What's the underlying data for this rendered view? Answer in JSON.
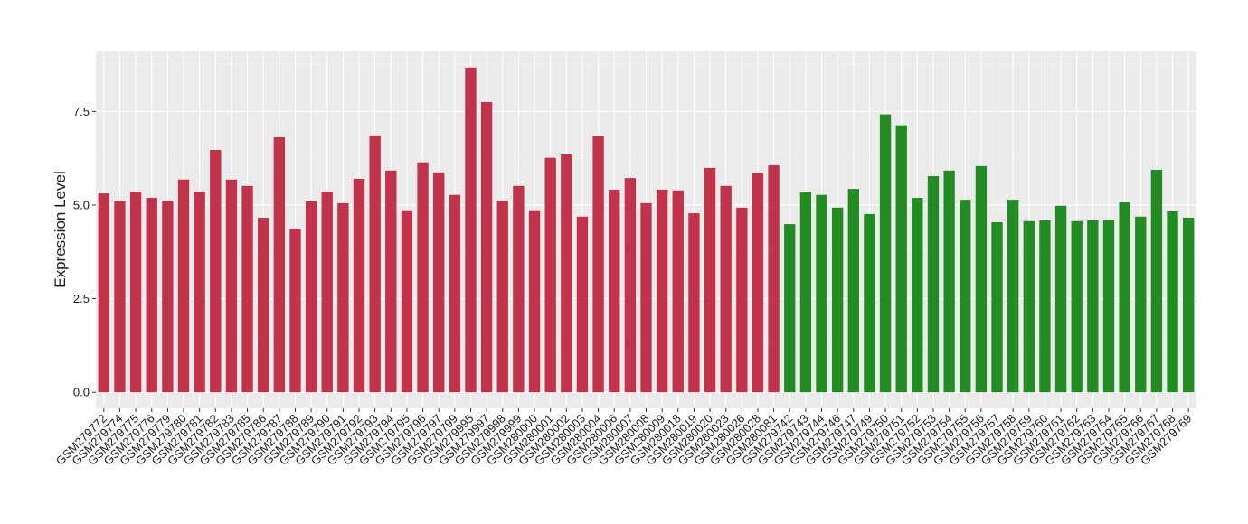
{
  "chart_data": {
    "type": "bar",
    "y_label": "Expression Level",
    "categories": [
      "GSM279772",
      "GSM279774",
      "GSM279775",
      "GSM279776",
      "GSM279779",
      "GSM279780",
      "GSM279781",
      "GSM279782",
      "GSM279783",
      "GSM279785",
      "GSM279786",
      "GSM279787",
      "GSM279788",
      "GSM279789",
      "GSM279790",
      "GSM279791",
      "GSM279792",
      "GSM279793",
      "GSM279794",
      "GSM279795",
      "GSM279796",
      "GSM279797",
      "GSM279799",
      "GSM279995",
      "GSM279997",
      "GSM279998",
      "GSM279999",
      "GSM280000",
      "GSM280001",
      "GSM280002",
      "GSM280003",
      "GSM280004",
      "GSM280006",
      "GSM280007",
      "GSM280008",
      "GSM280009",
      "GSM280018",
      "GSM280019",
      "GSM280020",
      "GSM280023",
      "GSM280026",
      "GSM280028",
      "GSM280081",
      "GSM279742",
      "GSM279743",
      "GSM279744",
      "GSM279746",
      "GSM279747",
      "GSM279749",
      "GSM279750",
      "GSM279751",
      "GSM279752",
      "GSM279753",
      "GSM279754",
      "GSM279755",
      "GSM279756",
      "GSM279757",
      "GSM279758",
      "GSM279759",
      "GSM279760",
      "GSM279761",
      "GSM279762",
      "GSM279763",
      "GSM279764",
      "GSM279765",
      "GSM279766",
      "GSM279767",
      "GSM279768",
      "GSM279769"
    ],
    "values": [
      5.31,
      5.1,
      5.36,
      5.19,
      5.12,
      5.68,
      5.36,
      6.47,
      5.68,
      5.51,
      4.66,
      6.81,
      4.37,
      5.1,
      5.36,
      5.05,
      5.7,
      6.86,
      5.92,
      4.86,
      6.14,
      5.87,
      5.27,
      8.67,
      7.75,
      5.12,
      5.51,
      4.86,
      6.26,
      6.35,
      4.69,
      6.84,
      5.41,
      5.72,
      5.05,
      5.41,
      5.39,
      4.78,
      5.99,
      5.51,
      4.93,
      5.85,
      6.06,
      4.49,
      5.36,
      5.27,
      4.93,
      5.43,
      4.76,
      7.42,
      7.13,
      5.19,
      5.77,
      5.92,
      5.14,
      6.04,
      4.54,
      5.14,
      4.57,
      4.59,
      4.98,
      4.57,
      4.59,
      4.61,
      5.07,
      4.69,
      5.94,
      4.83,
      4.66
    ],
    "colors": [
      "#c0334a",
      "#c0334a",
      "#c0334a",
      "#c0334a",
      "#c0334a",
      "#c0334a",
      "#c0334a",
      "#c0334a",
      "#c0334a",
      "#c0334a",
      "#c0334a",
      "#c0334a",
      "#c0334a",
      "#c0334a",
      "#c0334a",
      "#c0334a",
      "#c0334a",
      "#c0334a",
      "#c0334a",
      "#c0334a",
      "#c0334a",
      "#c0334a",
      "#c0334a",
      "#c0334a",
      "#c0334a",
      "#c0334a",
      "#c0334a",
      "#c0334a",
      "#c0334a",
      "#c0334a",
      "#c0334a",
      "#c0334a",
      "#c0334a",
      "#c0334a",
      "#c0334a",
      "#c0334a",
      "#c0334a",
      "#c0334a",
      "#c0334a",
      "#c0334a",
      "#c0334a",
      "#c0334a",
      "#c0334a",
      "#228b22",
      "#228b22",
      "#228b22",
      "#228b22",
      "#228b22",
      "#228b22",
      "#228b22",
      "#228b22",
      "#228b22",
      "#228b22",
      "#228b22",
      "#228b22",
      "#228b22",
      "#228b22",
      "#228b22",
      "#228b22",
      "#228b22",
      "#228b22",
      "#228b22",
      "#228b22",
      "#228b22",
      "#228b22",
      "#228b22",
      "#228b22",
      "#228b22",
      "#228b22"
    ],
    "ylim": [
      -0.43,
      9.1
    ],
    "yticks": [
      {
        "value": 0,
        "label": "0.0"
      },
      2.5,
      {
        "value": 5,
        "label": "5.0"
      },
      7.5
    ],
    "grid": true
  }
}
